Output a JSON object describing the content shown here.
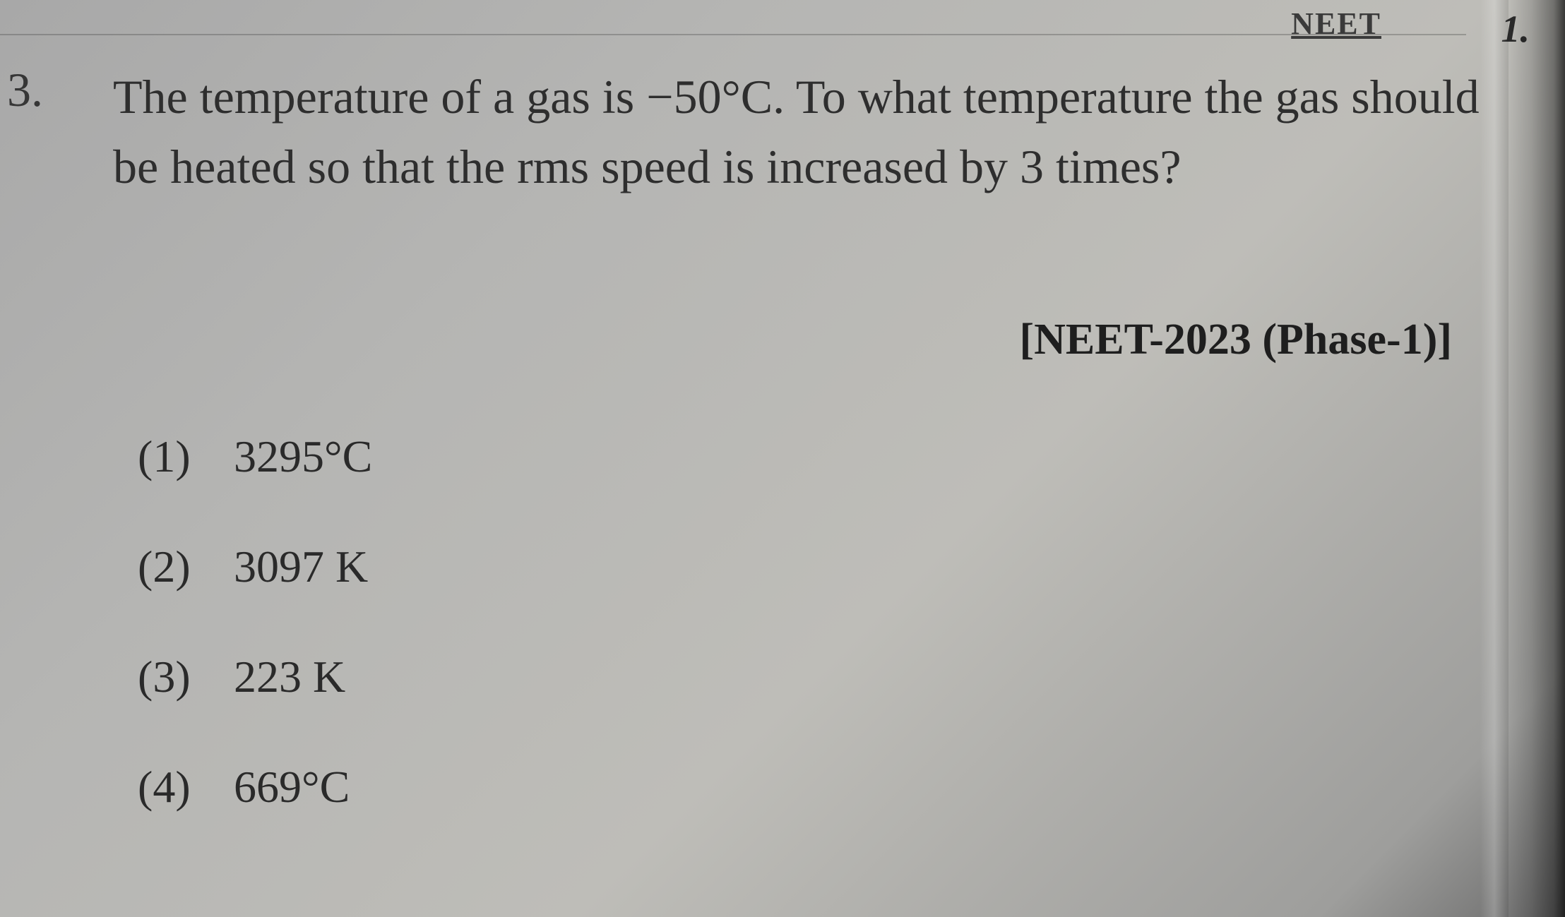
{
  "header": {
    "label": "NEET",
    "side_number": "1."
  },
  "question": {
    "number": "3.",
    "text": "The temperature of a gas is −50°C. To what temperature the gas should be heated so that the rms speed is increased by 3 times?",
    "exam_tag": "[NEET-2023 (Phase-1)]"
  },
  "options": [
    {
      "number": "(1)",
      "value": "3295°C"
    },
    {
      "number": "(2)",
      "value": "3097 K"
    },
    {
      "number": "(3)",
      "value": "223 K"
    },
    {
      "number": "(4)",
      "value": "669°C"
    }
  ],
  "styling": {
    "background_gradient": [
      "#a8a8a8",
      "#b5b5b3",
      "#bebdb8",
      "#9e9e9c",
      "#6a6a6a"
    ],
    "text_color": "#2e2e2e",
    "question_fontsize": 68,
    "option_fontsize": 64,
    "exam_tag_fontsize": 62,
    "header_fontsize": 44,
    "font_family": "Georgia, Times New Roman, serif",
    "option_spacing": 82,
    "line_height": 1.45
  }
}
